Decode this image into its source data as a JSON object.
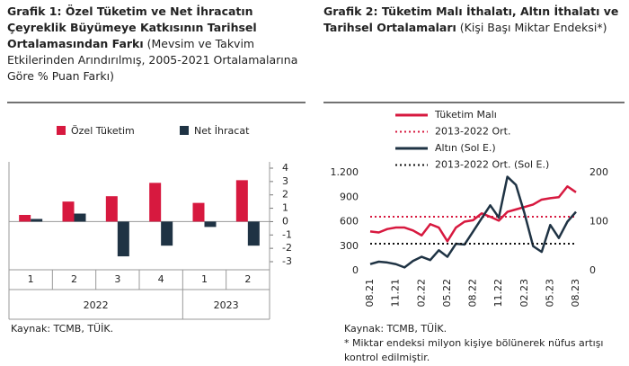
{
  "chart_data": [
    {
      "type": "bar",
      "title": "Grafik 1: Özel Tüketim ve Net İhracatın Çeyreklik Büyümeye Katkısının Tarihsel Ortalamasından Farkı",
      "subtitle": "(Mevsim ve Takvim Etkilerinden Arındırılmış, 2005-2021 Ortalamalarına Göre % Puan Farkı)",
      "categories": [
        "1",
        "2",
        "3",
        "4",
        "1",
        "2"
      ],
      "groups": [
        "2022",
        "2022",
        "2022",
        "2022",
        "2023",
        "2023"
      ],
      "series": [
        {
          "name": "Özel Tüketim",
          "color": "#d7193f",
          "values": [
            0.5,
            1.5,
            1.9,
            2.9,
            1.4,
            3.1
          ]
        },
        {
          "name": "Net İhracat",
          "color": "#1f3344",
          "values": [
            0.2,
            0.6,
            -2.6,
            -1.8,
            -0.4,
            -1.8
          ]
        }
      ],
      "ylim": [
        -3,
        4
      ],
      "yticks": [
        4,
        3,
        2,
        1,
        0,
        -1,
        -2,
        -3
      ],
      "notes": [
        "Kaynak: TCMB, TÜİK."
      ]
    },
    {
      "type": "line",
      "title": "Grafik 2: Tüketim Malı İthalatı, Altın İthalatı ve Tarihsel Ortalamaları",
      "subtitle": "(Kişi Başı Miktar Endeksi*)",
      "categories": [
        "08.21",
        null,
        null,
        "11.21",
        null,
        null,
        "02.22",
        null,
        null,
        "05.22",
        null,
        null,
        "08.22",
        null,
        null,
        "11.22",
        null,
        null,
        "02.23",
        null,
        null,
        "05.23",
        null,
        null,
        "08.23"
      ],
      "series": [
        {
          "name": "Tüketim Malı",
          "color": "#d7193f",
          "axis": "y2",
          "values": [
            80,
            78,
            85,
            88,
            88,
            82,
            72,
            95,
            88,
            60,
            88,
            100,
            103,
            117,
            110,
            102,
            120,
            125,
            130,
            135,
            145,
            148,
            150,
            172,
            160
          ]
        },
        {
          "name": "2013-2022 Ort.",
          "color": "#d7193f",
          "axis": "y2",
          "dotted": true,
          "hline": 110
        },
        {
          "name": "Altın (Sol E.)",
          "color": "#1f3344",
          "values": [
            80,
            110,
            100,
            80,
            40,
            120,
            170,
            130,
            250,
            170,
            330,
            320,
            480,
            640,
            800,
            650,
            1150,
            1050,
            700,
            300,
            230,
            560,
            400,
            600,
            720
          ]
        },
        {
          "name": "2013-2022 Ort. (Sol E.)",
          "color": "#111111",
          "dotted": true,
          "hline": 330
        }
      ],
      "ylim": [
        0,
        1200
      ],
      "yticks": [
        0,
        300,
        600,
        900,
        {
          "value": 1200,
          "label": "1.200"
        }
      ],
      "y2lim": [
        0,
        200
      ],
      "y2ticks": [
        0,
        100,
        200
      ],
      "notes": [
        "Kaynak: TCMB, TÜİK.",
        "* Miktar endeksi milyon kişiye bölünerek nüfus artışı kontrol edilmiştir."
      ]
    }
  ]
}
